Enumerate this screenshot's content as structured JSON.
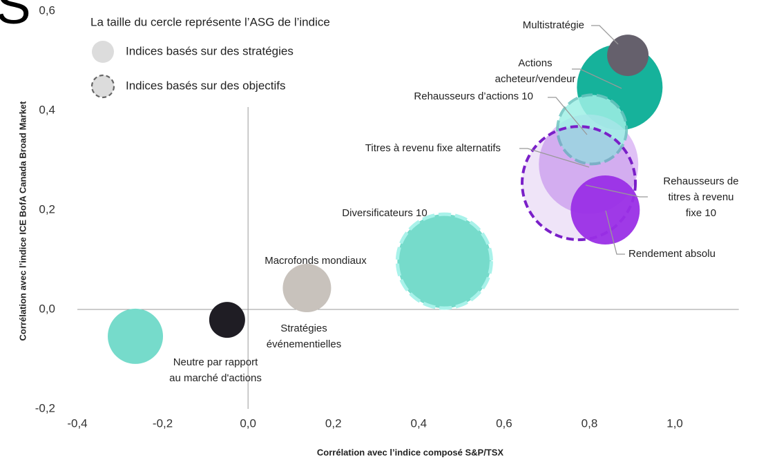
{
  "chart_data": {
    "type": "scatter",
    "logo_text": "S",
    "legend_title": "La taille du cercle représente l’ASG de l’indice",
    "groups": [
      {
        "name": "Indices basés sur des stratégies",
        "color": "#dcdcdc"
      },
      {
        "name": "Indices basés sur des objectifs",
        "color": "#dcdcdc"
      }
    ],
    "xlabel": "Corrélation avec l’indice composé S&P/TSX",
    "ylabel": "Corrélation avec l’indice ICE BofA Canada Broad Market",
    "xlim": [
      -0.4,
      1.15
    ],
    "ylim": [
      -0.2,
      0.6
    ],
    "xticks": [
      {
        "value": -0.4,
        "label": "-0,4"
      },
      {
        "value": -0.2,
        "label": "-0,2"
      },
      {
        "value": 0,
        "label": "0,0"
      },
      {
        "value": 0.2,
        "label": "0,2"
      },
      {
        "value": 0.4,
        "label": "0,4"
      },
      {
        "value": 0.6,
        "label": "0,6"
      },
      {
        "value": 0.8,
        "label": "0,8"
      },
      {
        "value": 1.0,
        "label": "1,0"
      }
    ],
    "yticks": [
      {
        "value": -0.2,
        "label": "-0,2"
      },
      {
        "value": 0,
        "label": "0,0"
      },
      {
        "value": 0.2,
        "label": "0,2"
      },
      {
        "value": 0.4,
        "label": "0,4"
      },
      {
        "value": 0.6,
        "label": "0,6"
      }
    ],
    "points": [
      {
        "label": [
          "Neutre par rapport",
          "au marché d'actions"
        ],
        "x": -0.264,
        "y": -0.054,
        "size": 40,
        "color": "#76dbcb",
        "group": 0
      },
      {
        "label": [
          "Stratégies",
          "événementielles"
        ],
        "x": -0.049,
        "y": -0.021,
        "size": 26,
        "color": "#1f1d24",
        "group": 0
      },
      {
        "label": [
          "Macrofonds mondiaux"
        ],
        "x": 0.138,
        "y": 0.043,
        "size": 35,
        "color": "#c8c2bc",
        "group": 0
      },
      {
        "label": [
          "Diversificateurs 10"
        ],
        "x": 0.46,
        "y": 0.097,
        "size": 68,
        "color": "#76dbcb",
        "group": 1
      },
      {
        "label": [
          "Actions",
          "acheteur/vendeur"
        ],
        "x": 0.871,
        "y": 0.447,
        "size": 62,
        "color": "#16b29b",
        "group": 0
      },
      {
        "label": [
          "Multistratégie"
        ],
        "x": 0.89,
        "y": 0.511,
        "size": 30,
        "color": "#65606c",
        "group": 0
      },
      {
        "label": [
          "Titres à revenu fixe alternatifs"
        ],
        "x": 0.798,
        "y": 0.292,
        "size": 72,
        "color": "#d8b2f4",
        "group": 0
      },
      {
        "label": [
          "Rehausseurs d’actions 10"
        ],
        "x": 0.806,
        "y": 0.362,
        "size": 50,
        "color": "#9ff0e6",
        "group": 1
      },
      {
        "label": [
          "Rehausseurs de",
          "titres à revenu",
          "fixe 10"
        ],
        "x": 0.775,
        "y": 0.254,
        "size": 82,
        "color": "#7a1fc8",
        "group": 1
      },
      {
        "label": [
          "Rendement absolu"
        ],
        "x": 0.837,
        "y": 0.2,
        "size": 50,
        "color": "#9a2fe6",
        "group": 0
      }
    ]
  }
}
